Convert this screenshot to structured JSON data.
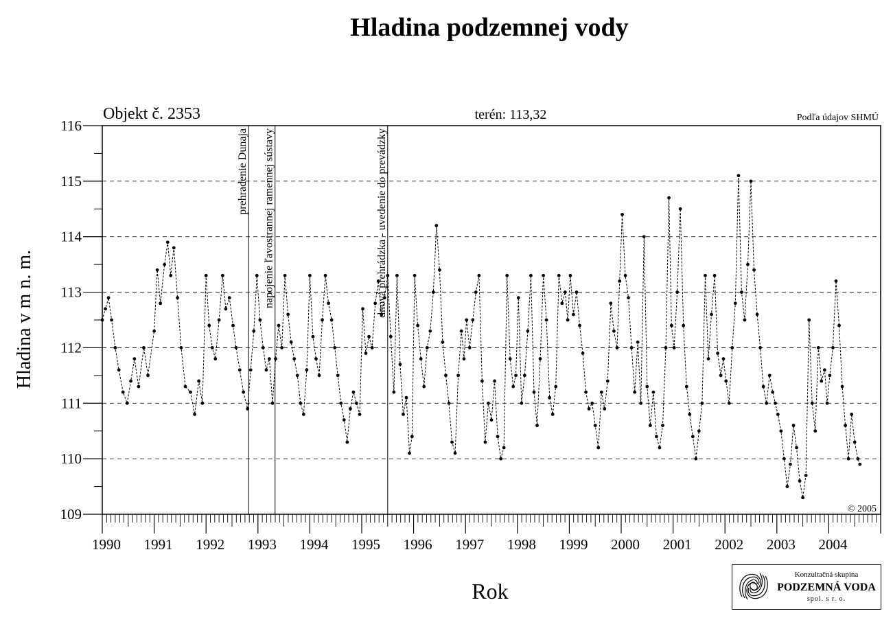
{
  "chart_data": {
    "type": "line",
    "title": "Hladina podzemnej vody",
    "object_label": "Objekt č. 2353",
    "terrain_label": "terén:",
    "terrain_value": "113,32",
    "source_note": "Podľa údajov SHMÚ",
    "copyright": "© 2005",
    "xlabel": "Rok",
    "ylabel": "Hladina v m n. m.",
    "ylim": [
      109,
      116
    ],
    "yticks": [
      "109",
      "110",
      "111",
      "112",
      "113",
      "114",
      "115",
      "116"
    ],
    "xlim": [
      1990.0,
      2005.0
    ],
    "xticks": [
      "1990",
      "1991",
      "1992",
      "1993",
      "1994",
      "1995",
      "1996",
      "1997",
      "1998",
      "1999",
      "2000",
      "2001",
      "2002",
      "2003",
      "2004"
    ],
    "grid": "horizontal dashed",
    "events": [
      {
        "x": 1992.82,
        "label": "prehradenie Dunaja"
      },
      {
        "x": 1993.33,
        "label": "napojenie ľavostrannej ramennej sústavy"
      },
      {
        "x": 1995.5,
        "label": "dnová prehrádzka - uvedenie do prevádzky"
      }
    ],
    "series": [
      {
        "points": [
          [
            1990.0,
            112.5
          ],
          [
            1990.06,
            112.7
          ],
          [
            1990.12,
            112.9
          ],
          [
            1990.18,
            112.5
          ],
          [
            1990.25,
            112.0
          ],
          [
            1990.32,
            111.6
          ],
          [
            1990.4,
            111.2
          ],
          [
            1990.48,
            111.0
          ],
          [
            1990.55,
            111.4
          ],
          [
            1990.62,
            111.8
          ],
          [
            1990.7,
            111.3
          ],
          [
            1990.8,
            112.0
          ],
          [
            1990.88,
            111.5
          ],
          [
            1991.0,
            112.3
          ],
          [
            1991.06,
            113.4
          ],
          [
            1991.12,
            112.8
          ],
          [
            1991.2,
            113.5
          ],
          [
            1991.26,
            113.9
          ],
          [
            1991.32,
            113.3
          ],
          [
            1991.38,
            113.8
          ],
          [
            1991.45,
            112.9
          ],
          [
            1991.52,
            112.0
          ],
          [
            1991.6,
            111.3
          ],
          [
            1991.7,
            111.2
          ],
          [
            1991.78,
            110.8
          ],
          [
            1991.86,
            111.4
          ],
          [
            1991.93,
            111.0
          ],
          [
            1992.0,
            113.3
          ],
          [
            1992.06,
            112.4
          ],
          [
            1992.12,
            112.0
          ],
          [
            1992.18,
            111.8
          ],
          [
            1992.25,
            112.5
          ],
          [
            1992.32,
            113.3
          ],
          [
            1992.38,
            112.7
          ],
          [
            1992.45,
            112.9
          ],
          [
            1992.52,
            112.4
          ],
          [
            1992.58,
            112.0
          ],
          [
            1992.65,
            111.6
          ],
          [
            1992.72,
            111.2
          ],
          [
            1992.8,
            110.9
          ],
          [
            1992.86,
            111.6
          ],
          [
            1992.92,
            112.3
          ],
          [
            1992.98,
            113.3
          ],
          [
            1993.04,
            112.5
          ],
          [
            1993.1,
            112.0
          ],
          [
            1993.16,
            111.6
          ],
          [
            1993.22,
            111.8
          ],
          [
            1993.28,
            111.0
          ],
          [
            1993.34,
            111.8
          ],
          [
            1993.4,
            112.4
          ],
          [
            1993.46,
            112.0
          ],
          [
            1993.52,
            113.3
          ],
          [
            1993.58,
            112.6
          ],
          [
            1993.64,
            112.1
          ],
          [
            1993.7,
            111.8
          ],
          [
            1993.76,
            111.5
          ],
          [
            1993.82,
            111.0
          ],
          [
            1993.88,
            110.8
          ],
          [
            1993.94,
            111.6
          ],
          [
            1994.0,
            113.3
          ],
          [
            1994.06,
            112.2
          ],
          [
            1994.12,
            111.8
          ],
          [
            1994.18,
            111.5
          ],
          [
            1994.24,
            112.5
          ],
          [
            1994.3,
            113.3
          ],
          [
            1994.36,
            112.8
          ],
          [
            1994.42,
            112.5
          ],
          [
            1994.48,
            112.0
          ],
          [
            1994.54,
            111.5
          ],
          [
            1994.6,
            111.0
          ],
          [
            1994.66,
            110.7
          ],
          [
            1994.72,
            110.3
          ],
          [
            1994.78,
            110.9
          ],
          [
            1994.84,
            111.2
          ],
          [
            1994.9,
            111.0
          ],
          [
            1994.96,
            110.8
          ],
          [
            1995.02,
            112.7
          ],
          [
            1995.08,
            111.9
          ],
          [
            1995.14,
            112.2
          ],
          [
            1995.2,
            112.0
          ],
          [
            1995.26,
            112.8
          ],
          [
            1995.32,
            113.2
          ],
          [
            1995.38,
            112.6
          ],
          [
            1995.44,
            112.9
          ],
          [
            1995.5,
            113.3
          ],
          [
            1995.56,
            112.2
          ],
          [
            1995.62,
            111.2
          ],
          [
            1995.68,
            113.3
          ],
          [
            1995.74,
            111.7
          ],
          [
            1995.8,
            110.8
          ],
          [
            1995.86,
            111.1
          ],
          [
            1995.92,
            110.1
          ],
          [
            1995.97,
            110.4
          ],
          [
            1996.02,
            113.3
          ],
          [
            1996.08,
            112.4
          ],
          [
            1996.14,
            111.8
          ],
          [
            1996.2,
            111.3
          ],
          [
            1996.26,
            112.0
          ],
          [
            1996.32,
            112.3
          ],
          [
            1996.38,
            113.0
          ],
          [
            1996.44,
            114.2
          ],
          [
            1996.5,
            113.4
          ],
          [
            1996.56,
            112.1
          ],
          [
            1996.62,
            111.5
          ],
          [
            1996.68,
            111.0
          ],
          [
            1996.74,
            110.3
          ],
          [
            1996.8,
            110.1
          ],
          [
            1996.86,
            111.5
          ],
          [
            1996.92,
            112.3
          ],
          [
            1996.97,
            111.8
          ],
          [
            1997.02,
            112.5
          ],
          [
            1997.08,
            112.0
          ],
          [
            1997.14,
            112.5
          ],
          [
            1997.2,
            113.0
          ],
          [
            1997.26,
            113.3
          ],
          [
            1997.32,
            111.4
          ],
          [
            1997.38,
            110.3
          ],
          [
            1997.44,
            111.0
          ],
          [
            1997.5,
            110.7
          ],
          [
            1997.56,
            111.4
          ],
          [
            1997.62,
            110.4
          ],
          [
            1997.68,
            110.0
          ],
          [
            1997.74,
            110.2
          ],
          [
            1997.8,
            113.3
          ],
          [
            1997.86,
            111.8
          ],
          [
            1997.92,
            111.3
          ],
          [
            1997.97,
            111.5
          ],
          [
            1998.02,
            112.9
          ],
          [
            1998.08,
            111.0
          ],
          [
            1998.14,
            111.5
          ],
          [
            1998.2,
            112.3
          ],
          [
            1998.26,
            113.3
          ],
          [
            1998.32,
            111.2
          ],
          [
            1998.38,
            110.6
          ],
          [
            1998.44,
            111.8
          ],
          [
            1998.5,
            113.3
          ],
          [
            1998.56,
            112.5
          ],
          [
            1998.62,
            111.1
          ],
          [
            1998.68,
            110.8
          ],
          [
            1998.74,
            111.3
          ],
          [
            1998.8,
            113.3
          ],
          [
            1998.86,
            112.8
          ],
          [
            1998.92,
            113.0
          ],
          [
            1998.97,
            112.5
          ],
          [
            1999.02,
            113.3
          ],
          [
            1999.08,
            112.6
          ],
          [
            1999.14,
            113.0
          ],
          [
            1999.2,
            112.4
          ],
          [
            1999.26,
            111.9
          ],
          [
            1999.32,
            111.2
          ],
          [
            1999.38,
            110.9
          ],
          [
            1999.44,
            111.0
          ],
          [
            1999.5,
            110.6
          ],
          [
            1999.56,
            110.2
          ],
          [
            1999.62,
            111.2
          ],
          [
            1999.68,
            110.9
          ],
          [
            1999.74,
            111.4
          ],
          [
            1999.8,
            112.8
          ],
          [
            1999.86,
            112.3
          ],
          [
            1999.92,
            112.0
          ],
          [
            1999.97,
            113.2
          ],
          [
            2000.02,
            114.4
          ],
          [
            2000.08,
            113.3
          ],
          [
            2000.14,
            112.9
          ],
          [
            2000.2,
            112.0
          ],
          [
            2000.26,
            111.2
          ],
          [
            2000.32,
            112.1
          ],
          [
            2000.38,
            111.0
          ],
          [
            2000.44,
            114.0
          ],
          [
            2000.5,
            111.3
          ],
          [
            2000.56,
            110.6
          ],
          [
            2000.62,
            111.2
          ],
          [
            2000.68,
            110.4
          ],
          [
            2000.74,
            110.2
          ],
          [
            2000.8,
            110.6
          ],
          [
            2000.86,
            112.0
          ],
          [
            2000.92,
            114.7
          ],
          [
            2000.97,
            112.4
          ],
          [
            2001.02,
            112.0
          ],
          [
            2001.08,
            113.0
          ],
          [
            2001.14,
            114.5
          ],
          [
            2001.2,
            112.4
          ],
          [
            2001.26,
            111.3
          ],
          [
            2001.32,
            110.8
          ],
          [
            2001.38,
            110.4
          ],
          [
            2001.44,
            110.0
          ],
          [
            2001.5,
            110.5
          ],
          [
            2001.56,
            111.0
          ],
          [
            2001.62,
            113.3
          ],
          [
            2001.68,
            111.8
          ],
          [
            2001.74,
            112.6
          ],
          [
            2001.8,
            113.3
          ],
          [
            2001.86,
            111.9
          ],
          [
            2001.92,
            111.5
          ],
          [
            2001.97,
            111.8
          ],
          [
            2002.02,
            111.4
          ],
          [
            2002.08,
            111.0
          ],
          [
            2002.14,
            112.0
          ],
          [
            2002.2,
            112.8
          ],
          [
            2002.26,
            115.1
          ],
          [
            2002.32,
            113.0
          ],
          [
            2002.38,
            112.5
          ],
          [
            2002.44,
            113.5
          ],
          [
            2002.5,
            115.0
          ],
          [
            2002.56,
            113.4
          ],
          [
            2002.62,
            112.6
          ],
          [
            2002.68,
            112.0
          ],
          [
            2002.74,
            111.3
          ],
          [
            2002.8,
            111.0
          ],
          [
            2002.86,
            111.5
          ],
          [
            2002.92,
            111.2
          ],
          [
            2002.97,
            111.0
          ],
          [
            2003.02,
            110.8
          ],
          [
            2003.08,
            110.5
          ],
          [
            2003.14,
            110.0
          ],
          [
            2003.2,
            109.5
          ],
          [
            2003.26,
            109.9
          ],
          [
            2003.32,
            110.6
          ],
          [
            2003.38,
            110.2
          ],
          [
            2003.44,
            109.6
          ],
          [
            2003.5,
            109.3
          ],
          [
            2003.56,
            109.7
          ],
          [
            2003.62,
            112.5
          ],
          [
            2003.68,
            111.0
          ],
          [
            2003.74,
            110.5
          ],
          [
            2003.8,
            112.0
          ],
          [
            2003.86,
            111.4
          ],
          [
            2003.92,
            111.6
          ],
          [
            2003.97,
            111.0
          ],
          [
            2004.02,
            111.5
          ],
          [
            2004.08,
            112.0
          ],
          [
            2004.14,
            113.2
          ],
          [
            2004.2,
            112.4
          ],
          [
            2004.26,
            111.3
          ],
          [
            2004.32,
            110.6
          ],
          [
            2004.38,
            110.0
          ],
          [
            2004.44,
            110.8
          ],
          [
            2004.5,
            110.3
          ],
          [
            2004.56,
            110.0
          ],
          [
            2004.6,
            109.9
          ]
        ]
      }
    ]
  },
  "logo": {
    "line1": "Konzultačná skupina",
    "line2": "PODZEMNÁ VODA",
    "line3": "spol. s r. o."
  },
  "icons": {
    "logo": "water-wave-logo-icon"
  }
}
